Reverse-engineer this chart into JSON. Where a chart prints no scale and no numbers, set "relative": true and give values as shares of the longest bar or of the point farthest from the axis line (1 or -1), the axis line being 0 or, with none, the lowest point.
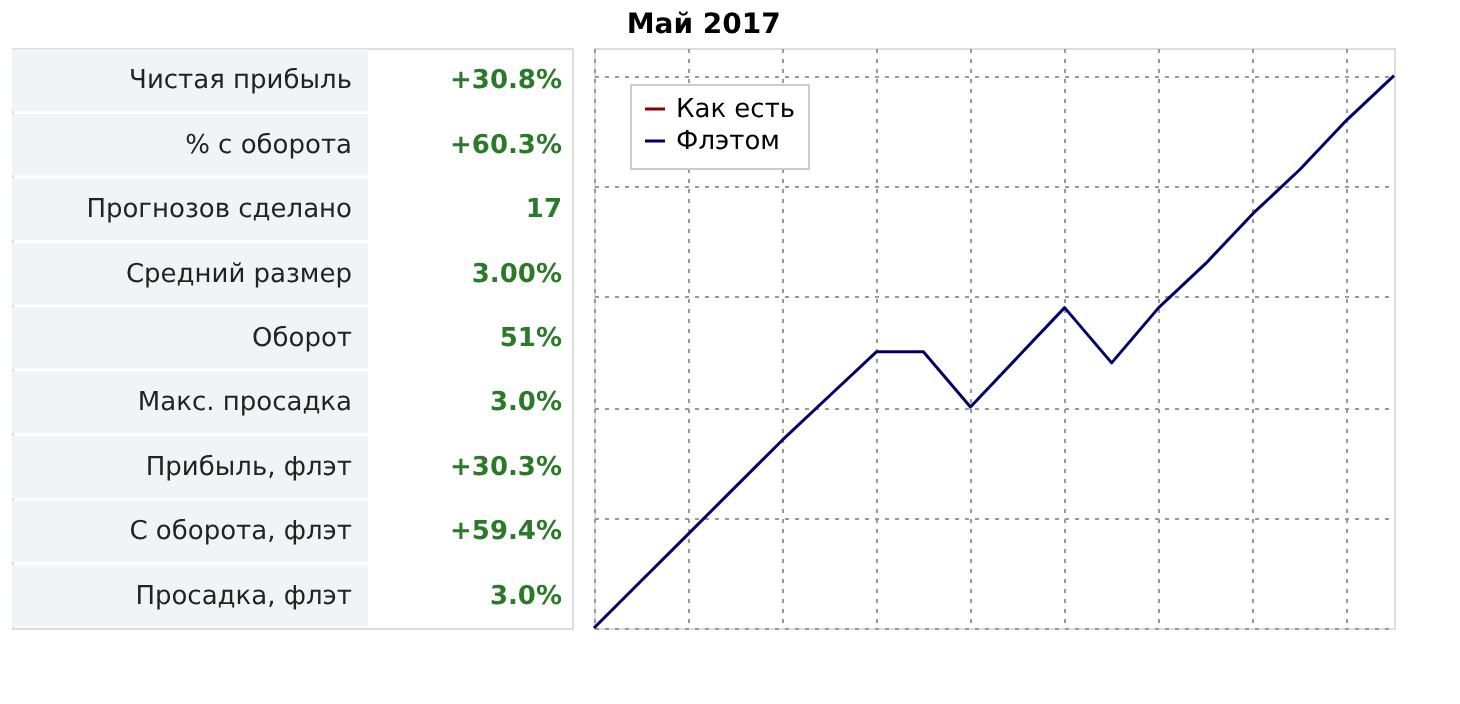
{
  "chart_data": [
    {
      "type": "other",
      "title": "Май 2017",
      "annotations": [
        "Чистая прибыль",
        "+30.8%",
        "% с оборота",
        "+60.3%",
        "Прогнозов сделано",
        "17",
        "Средний размер",
        "3.00%",
        "Оборот",
        "51%",
        "Макс. просадка",
        "3.0%",
        "Прибыль, флэт",
        "+30.3%",
        "С оборота, флэт",
        "+59.4%",
        "Просадка, флэт",
        "3.0%"
      ]
    },
    {
      "type": "line",
      "relative": true,
      "grid": true,
      "legend": "top left",
      "categories": [
        null,
        null,
        null,
        null,
        null,
        null,
        null,
        null,
        null,
        null,
        null,
        null,
        null,
        null,
        null,
        null,
        null,
        null
      ],
      "series": [
        {
          "name": "Как есть",
          "color": "#8b0000",
          "values": [
            null,
            null,
            null,
            null,
            null,
            null,
            null,
            null,
            null,
            null,
            null,
            null,
            null,
            null,
            null,
            null,
            null,
            null
          ]
        },
        {
          "name": "Флэтом",
          "color": "#000066",
          "values": [
            0,
            0.085,
            0.17,
            0.255,
            0.34,
            0.42,
            0.5,
            0.5,
            0.4,
            0.49,
            0.58,
            0.48,
            0.58,
            0.66,
            0.75,
            0.83,
            0.92,
            1
          ]
        }
      ]
    }
  ]
}
